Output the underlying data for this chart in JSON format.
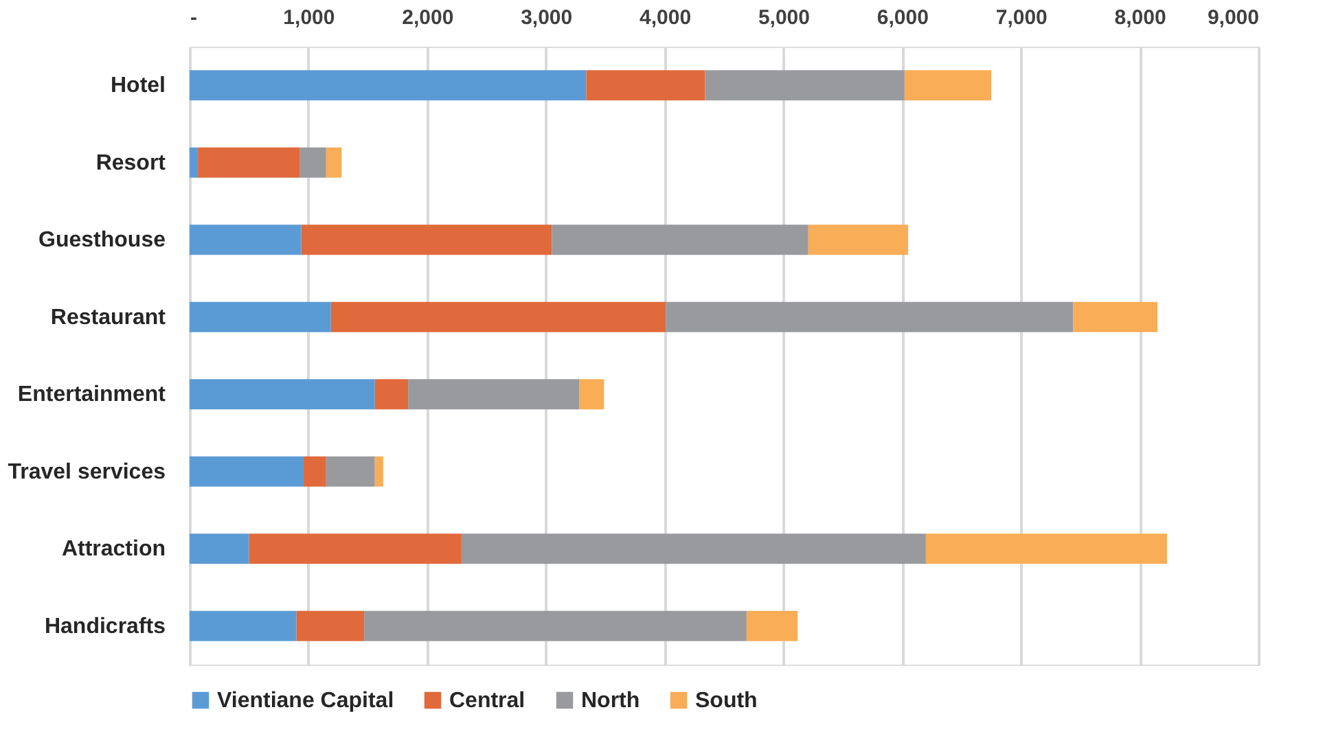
{
  "chart_data": {
    "type": "bar",
    "orientation": "horizontal",
    "stacked": true,
    "categories": [
      "Hotel",
      "Resort",
      "Guesthouse",
      "Restaurant",
      "Entertainment",
      "Travel services",
      "Attraction",
      "Handicrafts"
    ],
    "series": [
      {
        "name": "Vientiane Capital",
        "color": "#5b9bd5",
        "values": [
          3340,
          70,
          940,
          1190,
          1560,
          960,
          500,
          900
        ]
      },
      {
        "name": "Central",
        "color": "#e06a3b",
        "values": [
          1000,
          860,
          2110,
          2820,
          280,
          190,
          1790,
          570
        ]
      },
      {
        "name": "North",
        "color": "#999a9e",
        "values": [
          1680,
          220,
          2160,
          3430,
          1440,
          410,
          3910,
          3220
        ]
      },
      {
        "name": "South",
        "color": "#f8ad56",
        "values": [
          730,
          130,
          840,
          710,
          210,
          70,
          2030,
          430
        ]
      }
    ],
    "xlim": [
      0,
      9000
    ],
    "xticks": [
      {
        "value": 0,
        "label": "-"
      },
      {
        "value": 1000,
        "label": "1,000"
      },
      {
        "value": 2000,
        "label": "2,000"
      },
      {
        "value": 3000,
        "label": "3,000"
      },
      {
        "value": 4000,
        "label": "4,000"
      },
      {
        "value": 5000,
        "label": "5,000"
      },
      {
        "value": 6000,
        "label": "6,000"
      },
      {
        "value": 7000,
        "label": "7,000"
      },
      {
        "value": 8000,
        "label": "8,000"
      },
      {
        "value": 9000,
        "label": "9,000"
      }
    ],
    "grid": "x",
    "legend": "bottom"
  }
}
